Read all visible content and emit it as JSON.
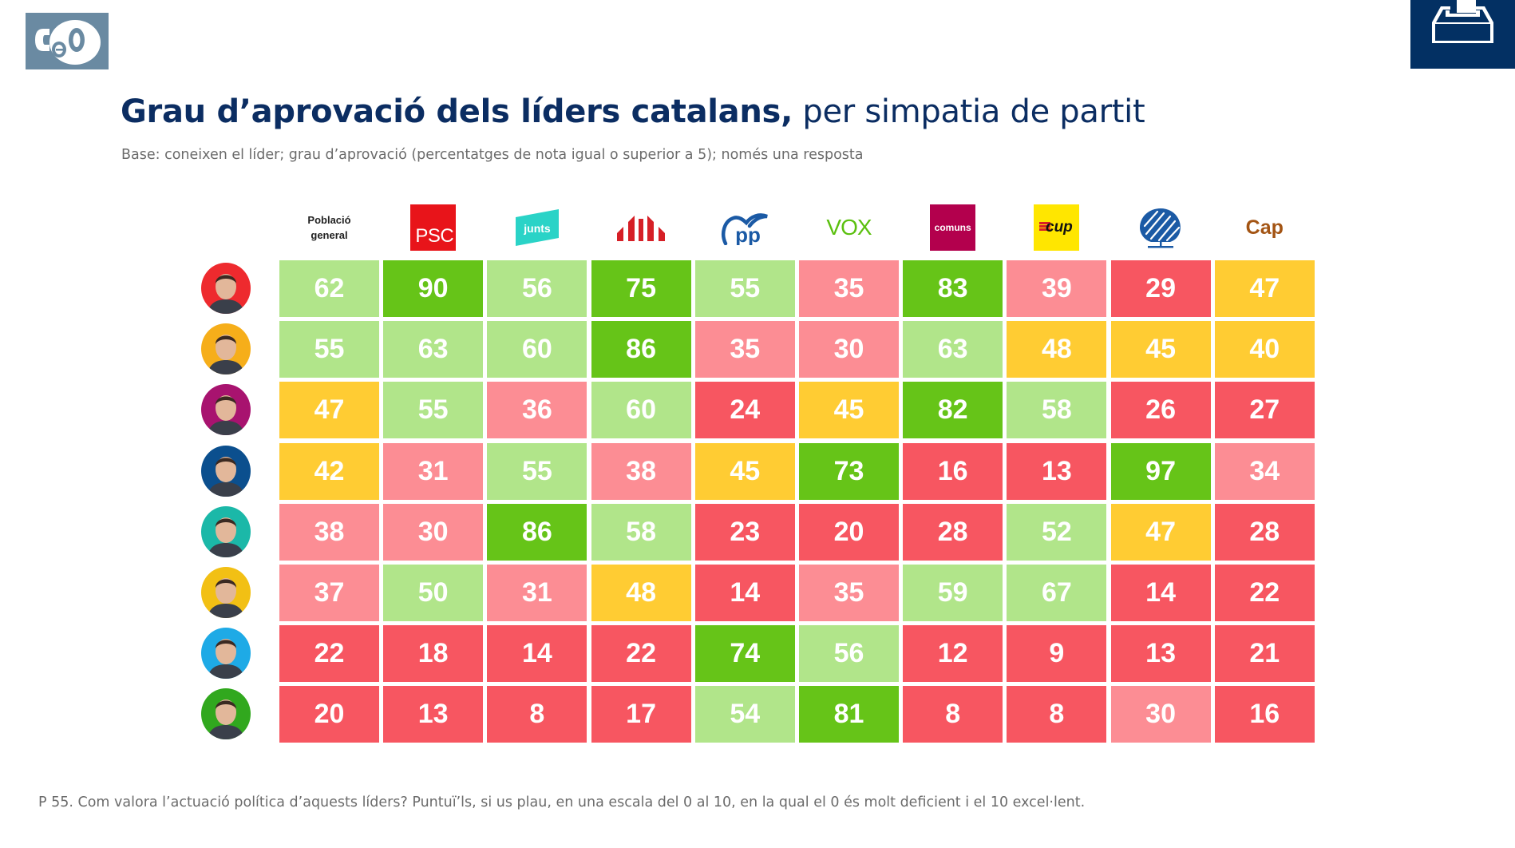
{
  "header": {
    "logo": "CEO",
    "title_bold": "Grau d’aprovació dels líders catalans,",
    "title_light": " per simpatia de partit",
    "subtitle": "Base: coneixen el líder; grau d’aprovació (percentatges de nota igual o superior a 5); només una resposta",
    "corner_icon": "ballot-box-icon"
  },
  "footer": {
    "question": "P 55. Com valora l’actuació política d’aquests líders? Puntuï’ls, si us plau, en una escala del 0 al 10, en la qual el 0 és molt deficient i el 10 excel·lent."
  },
  "colors": {
    "very_high": "#66C418",
    "high": "#B1E58A",
    "medium": "#FFCC33",
    "low": "#FC8D94",
    "very_low": "#F75661",
    "title": "#0B2D62",
    "logo_bg": "#6A8AA2",
    "corner_bg": "#033063"
  },
  "color_scale": [
    {
      "min": 70,
      "color_key": "very_high"
    },
    {
      "min": 50,
      "color_key": "high"
    },
    {
      "min": 40,
      "color_key": "medium"
    },
    {
      "min": 30,
      "color_key": "low"
    },
    {
      "min": 0,
      "color_key": "very_low"
    }
  ],
  "chart_data": {
    "type": "heatmap",
    "title": "Grau d’aprovació dels líders catalans, per simpatia de partit",
    "subtitle": "Base: coneixen el líder; grau d’aprovació (percentatges de nota igual o superior a 5); només una resposta",
    "unit": "%",
    "columns": [
      {
        "key": "poblacio",
        "label_lines": [
          "Població",
          "general"
        ],
        "logo": "text"
      },
      {
        "key": "psc",
        "label": "PSC",
        "logo": "psc-logo"
      },
      {
        "key": "junts",
        "label": "junts",
        "logo": "junts-logo"
      },
      {
        "key": "erc",
        "label": "ERC",
        "logo": "erc-logo"
      },
      {
        "key": "pp",
        "label": "pp",
        "logo": "pp-logo"
      },
      {
        "key": "vox",
        "label": "VOX",
        "logo": "vox-logo"
      },
      {
        "key": "comuns",
        "label": "comuns",
        "logo": "comuns-logo"
      },
      {
        "key": "cup",
        "label": "cup",
        "logo": "cup-logo"
      },
      {
        "key": "cs",
        "label": "Cs",
        "logo": "cs-logo"
      },
      {
        "key": "cap",
        "label": "Cap",
        "logo": "text"
      }
    ],
    "rows": [
      {
        "leader_avatar": "leader-1",
        "avatar_bg": "#EE2A2E",
        "values": [
          62,
          90,
          56,
          75,
          55,
          35,
          83,
          39,
          29,
          47
        ]
      },
      {
        "leader_avatar": "leader-2",
        "avatar_bg": "#F6AE1A",
        "values": [
          55,
          63,
          60,
          86,
          35,
          30,
          63,
          48,
          45,
          40
        ]
      },
      {
        "leader_avatar": "leader-3",
        "avatar_bg": "#A8136F",
        "values": [
          47,
          55,
          36,
          60,
          24,
          45,
          82,
          58,
          26,
          27
        ]
      },
      {
        "leader_avatar": "leader-4",
        "avatar_bg": "#0B4F8E",
        "values": [
          42,
          31,
          55,
          38,
          45,
          73,
          16,
          13,
          97,
          34
        ]
      },
      {
        "leader_avatar": "leader-5",
        "avatar_bg": "#1BB8A8",
        "values": [
          38,
          30,
          86,
          58,
          23,
          20,
          28,
          52,
          47,
          28
        ]
      },
      {
        "leader_avatar": "leader-6",
        "avatar_bg": "#F2C014",
        "values": [
          37,
          50,
          31,
          48,
          14,
          35,
          59,
          67,
          14,
          22
        ]
      },
      {
        "leader_avatar": "leader-7",
        "avatar_bg": "#1EAAE6",
        "values": [
          22,
          18,
          14,
          22,
          74,
          56,
          12,
          9,
          13,
          21
        ]
      },
      {
        "leader_avatar": "leader-8",
        "avatar_bg": "#31A81E",
        "values": [
          20,
          13,
          8,
          17,
          54,
          81,
          8,
          8,
          30,
          16
        ]
      }
    ]
  }
}
